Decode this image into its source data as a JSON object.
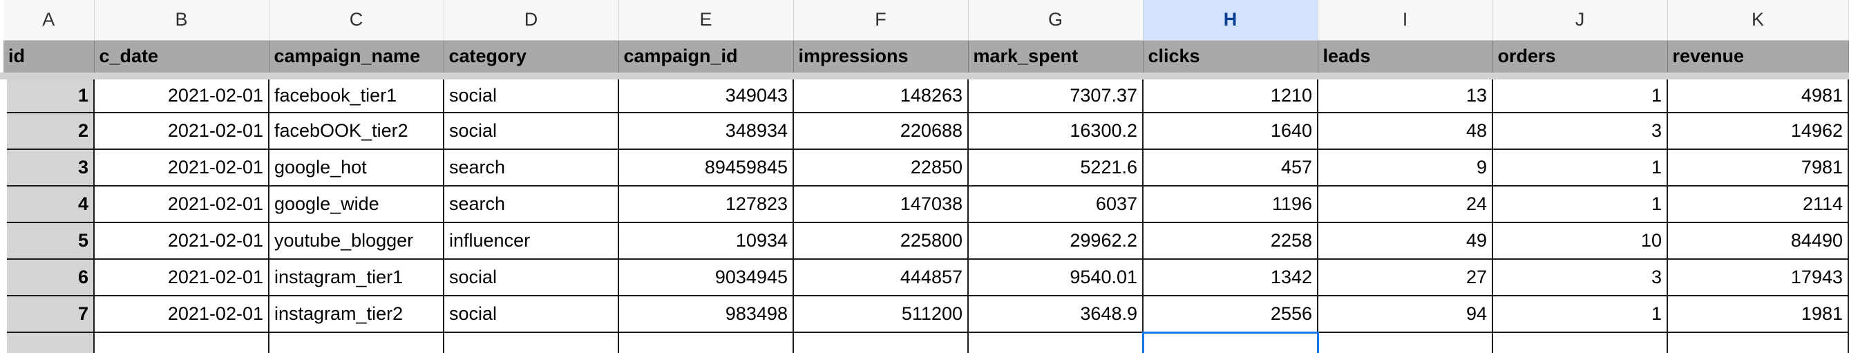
{
  "columns": [
    "A",
    "B",
    "C",
    "D",
    "E",
    "F",
    "G",
    "H",
    "I",
    "J",
    "K"
  ],
  "active_column": "H",
  "headers": [
    "id",
    "c_date",
    "campaign_name",
    "category",
    "campaign_id",
    "impressions",
    "mark_spent",
    "clicks",
    "leads",
    "orders",
    "revenue"
  ],
  "rows": [
    [
      "1",
      "2021-02-01",
      "facebook_tier1",
      "social",
      "349043",
      "148263",
      "7307.37",
      "1210",
      "13",
      "1",
      "4981"
    ],
    [
      "2",
      "2021-02-01",
      "facebOOK_tier2",
      "social",
      "348934",
      "220688",
      "16300.2",
      "1640",
      "48",
      "3",
      "14962"
    ],
    [
      "3",
      "2021-02-01",
      "google_hot",
      "search",
      "89459845",
      "22850",
      "5221.6",
      "457",
      "9",
      "1",
      "7981"
    ],
    [
      "4",
      "2021-02-01",
      "google_wide",
      "search",
      "127823",
      "147038",
      "6037",
      "1196",
      "24",
      "1",
      "2114"
    ],
    [
      "5",
      "2021-02-01",
      "youtube_blogger",
      "influencer",
      "10934",
      "225800",
      "29962.2",
      "2258",
      "49",
      "10",
      "84490"
    ],
    [
      "6",
      "2021-02-01",
      "instagram_tier1",
      "social",
      "9034945",
      "444857",
      "9540.01",
      "1342",
      "27",
      "3",
      "17943"
    ],
    [
      "7",
      "2021-02-01",
      "instagram_tier2",
      "social",
      "983498",
      "511200",
      "3648.9",
      "2556",
      "94",
      "1",
      "1981"
    ]
  ],
  "colors": {
    "header_fill": "#a9a9a9",
    "id_fill": "#d4d4d4",
    "active_column_fill": "#d3e3fd",
    "selection_border": "#1a73e8"
  }
}
